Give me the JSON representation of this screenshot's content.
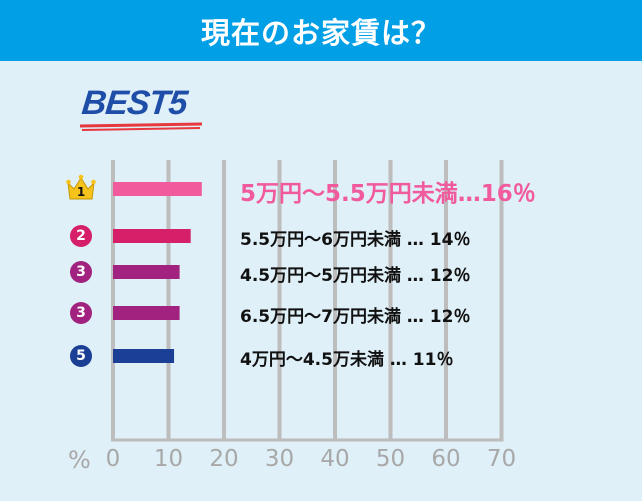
{
  "header": {
    "title": "現在のお家賃は？"
  },
  "badge": {
    "text": "BEST5"
  },
  "chart_data": {
    "type": "bar",
    "orientation": "horizontal",
    "title": "現在のお家賃は？",
    "xlabel": "%",
    "xlim": [
      0,
      70
    ],
    "xticks": [
      "0",
      "10",
      "20",
      "30",
      "40",
      "50",
      "60",
      "70"
    ],
    "items": [
      {
        "rank": "1",
        "label": "5万円～5.5万円未満…16％",
        "value": 16,
        "color": "#f15a9c"
      },
      {
        "rank": "2",
        "label": "5.5万円～6万円未満 … 14％",
        "value": 14,
        "color": "#d61f69"
      },
      {
        "rank": "3",
        "label": "4.5万円～5万円未満 … 12％",
        "value": 12,
        "color": "#a1237f"
      },
      {
        "rank": "3",
        "label": "6.5万円～7万円未満 … 12％",
        "value": 12,
        "color": "#a1237f"
      },
      {
        "rank": "5",
        "label": "4万円～4.5万未満 … 11％",
        "value": 11,
        "color": "#1a3f94"
      }
    ],
    "grid": true
  }
}
